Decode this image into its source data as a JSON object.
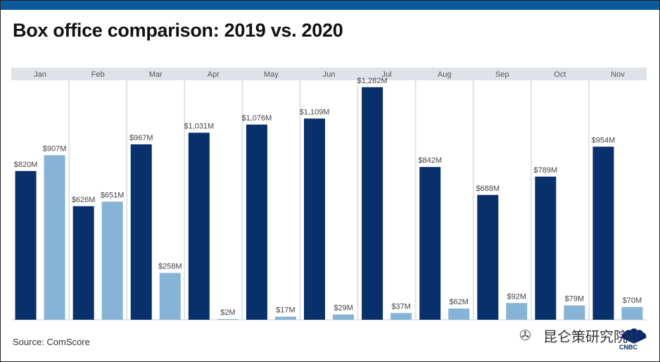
{
  "title": "Box office comparison: 2019 vs. 2020",
  "source": "Source: ComScore",
  "watermark": "昆仑策研究院",
  "logo_label": "CNBC",
  "colors": {
    "series_2019": "#08306b",
    "series_2020": "#85b4d8",
    "panel": "#dfe3e8",
    "topbar": "#0a5a9c"
  },
  "chart_data": {
    "type": "bar",
    "title": "Box office comparison: 2019 vs. 2020",
    "xlabel": "",
    "ylabel": "",
    "ylim": [
      0,
      1320
    ],
    "categories": [
      "Jan",
      "Feb",
      "Mar",
      "Apr",
      "May",
      "Jun",
      "Jul",
      "Aug",
      "Sep",
      "Oct",
      "Nov"
    ],
    "series": [
      {
        "name": "2019",
        "values": [
          820,
          626,
          967,
          1031,
          1076,
          1109,
          1282,
          842,
          688,
          789,
          954
        ],
        "labels": [
          "$820M",
          "$626M",
          "$967M",
          "$1,031M",
          "$1,076M",
          "$1,109M",
          "$1,282M",
          "$842M",
          "$688M",
          "$789M",
          "$954M"
        ]
      },
      {
        "name": "2020",
        "values": [
          907,
          651,
          258,
          2,
          17,
          29,
          37,
          62,
          92,
          79,
          70
        ],
        "labels": [
          "$907M",
          "$651M",
          "$258M",
          "$2M",
          "$17M",
          "$29M",
          "$37M",
          "$62M",
          "$92M",
          "$79M",
          "$70M"
        ]
      }
    ]
  }
}
